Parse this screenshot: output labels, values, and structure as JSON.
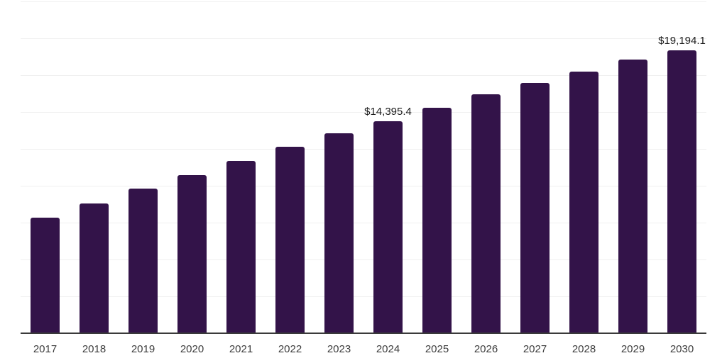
{
  "chart_data": {
    "type": "bar",
    "title": "",
    "subtitle": "",
    "xlabel": "",
    "ylabel": "",
    "categories": [
      "2017",
      "2018",
      "2019",
      "2020",
      "2021",
      "2022",
      "2023",
      "2024",
      "2025",
      "2026",
      "2027",
      "2028",
      "2029",
      "2030"
    ],
    "values": [
      7850,
      8810,
      9810,
      10740,
      11700,
      12630,
      13540,
      14395.4,
      15300,
      16190,
      16960,
      17760,
      18540,
      19194.1
    ],
    "value_labels": [
      {
        "category": "2024",
        "text": "$14,395.4"
      },
      {
        "category": "2030",
        "text": "$19,194.1"
      }
    ],
    "ylim": [
      0,
      22500
    ],
    "grid_step": 2500,
    "grid": true,
    "legend": false,
    "y_axis_labels_visible": false
  },
  "style": {
    "bar_color": "#331349",
    "grid_color": "#f0f0f0",
    "axis_color": "#3a3a3a",
    "tick_label_color": "#3c3c3c",
    "value_label_color": "#1c1c1c",
    "background": "#ffffff"
  }
}
